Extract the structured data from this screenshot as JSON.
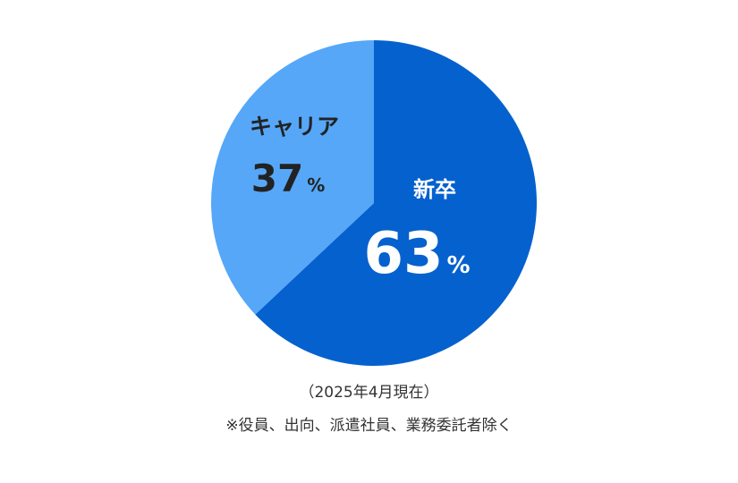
{
  "chart_data": {
    "type": "pie",
    "start_angle_deg": 0,
    "direction": "clockwise",
    "slices": [
      {
        "name": "新卒",
        "value": 63,
        "unit": "%",
        "color": "#0561CE",
        "text_color": "#FFFFFF"
      },
      {
        "name": "キャリア",
        "value": 37,
        "unit": "%",
        "color": "#56A7F8",
        "text_color": "#222222"
      }
    ]
  },
  "notes": {
    "date": "（2025年4月現在）",
    "exclusion": "※役員、出向、派遣社員、業務委託者除く"
  }
}
